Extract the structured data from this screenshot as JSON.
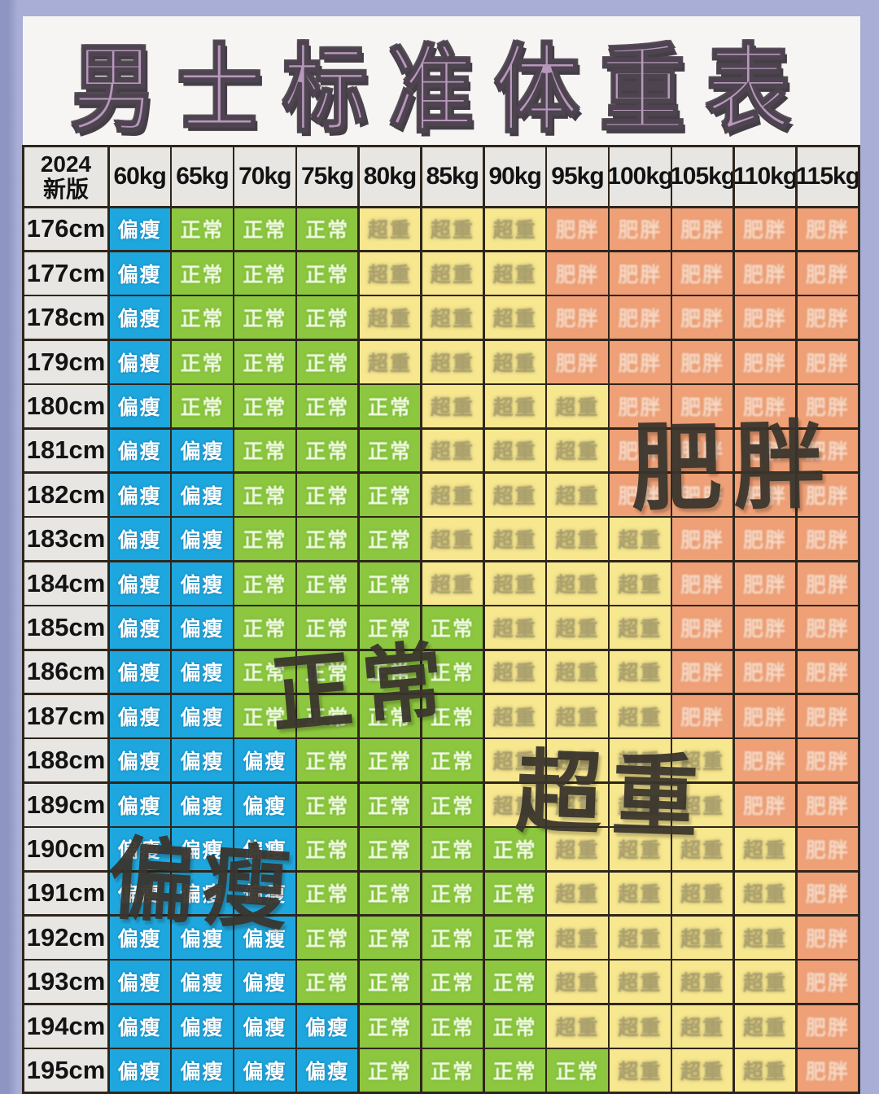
{
  "page": {
    "background_color": "#a8aed5",
    "title_band_color": "#f6f5f3",
    "title_color": "#b897bd"
  },
  "chart_data": {
    "type": "heatmap",
    "title": "男士标准体重表",
    "corner": {
      "line1": "2024",
      "line2": "新版"
    },
    "columns": [
      "60kg",
      "65kg",
      "70kg",
      "75kg",
      "80kg",
      "85kg",
      "90kg",
      "95kg",
      "100kg",
      "105kg",
      "110kg",
      "115kg"
    ],
    "rows": [
      "176cm",
      "177cm",
      "178cm",
      "179cm",
      "180cm",
      "181cm",
      "182cm",
      "183cm",
      "184cm",
      "185cm",
      "186cm",
      "187cm",
      "188cm",
      "189cm",
      "190cm",
      "191cm",
      "192cm",
      "193cm",
      "194cm",
      "195cm"
    ],
    "categories": {
      "B": {
        "label": "偏瘦",
        "color": "#1ea7de",
        "text_color": "#ffffff"
      },
      "N": {
        "label": "正常",
        "color": "#8cc73f",
        "text_color": "#f2fce4"
      },
      "O": {
        "label": "超重",
        "color": "#f7e78f",
        "text_color": "#9d9468"
      },
      "F": {
        "label": "肥胖",
        "color": "#efa077",
        "text_color": "#fbeadd"
      }
    },
    "matrix": [
      [
        "B",
        "N",
        "N",
        "N",
        "O",
        "O",
        "O",
        "F",
        "F",
        "F",
        "F",
        "F"
      ],
      [
        "B",
        "N",
        "N",
        "N",
        "O",
        "O",
        "O",
        "F",
        "F",
        "F",
        "F",
        "F"
      ],
      [
        "B",
        "N",
        "N",
        "N",
        "O",
        "O",
        "O",
        "F",
        "F",
        "F",
        "F",
        "F"
      ],
      [
        "B",
        "N",
        "N",
        "N",
        "O",
        "O",
        "O",
        "F",
        "F",
        "F",
        "F",
        "F"
      ],
      [
        "B",
        "N",
        "N",
        "N",
        "N",
        "O",
        "O",
        "O",
        "F",
        "F",
        "F",
        "F"
      ],
      [
        "B",
        "B",
        "N",
        "N",
        "N",
        "O",
        "O",
        "O",
        "F",
        "F",
        "F",
        "F"
      ],
      [
        "B",
        "B",
        "N",
        "N",
        "N",
        "O",
        "O",
        "O",
        "F",
        "F",
        "F",
        "F"
      ],
      [
        "B",
        "B",
        "N",
        "N",
        "N",
        "O",
        "O",
        "O",
        "O",
        "F",
        "F",
        "F"
      ],
      [
        "B",
        "B",
        "N",
        "N",
        "N",
        "O",
        "O",
        "O",
        "O",
        "F",
        "F",
        "F"
      ],
      [
        "B",
        "B",
        "N",
        "N",
        "N",
        "N",
        "O",
        "O",
        "O",
        "F",
        "F",
        "F"
      ],
      [
        "B",
        "B",
        "N",
        "N",
        "N",
        "N",
        "O",
        "O",
        "O",
        "F",
        "F",
        "F"
      ],
      [
        "B",
        "B",
        "N",
        "N",
        "N",
        "N",
        "O",
        "O",
        "O",
        "F",
        "F",
        "F"
      ],
      [
        "B",
        "B",
        "B",
        "N",
        "N",
        "N",
        "O",
        "O",
        "O",
        "O",
        "F",
        "F"
      ],
      [
        "B",
        "B",
        "B",
        "N",
        "N",
        "N",
        "O",
        "O",
        "O",
        "O",
        "F",
        "F"
      ],
      [
        "B",
        "B",
        "B",
        "N",
        "N",
        "N",
        "N",
        "O",
        "O",
        "O",
        "O",
        "F"
      ],
      [
        "B",
        "B",
        "B",
        "N",
        "N",
        "N",
        "N",
        "O",
        "O",
        "O",
        "O",
        "F"
      ],
      [
        "B",
        "B",
        "B",
        "N",
        "N",
        "N",
        "N",
        "O",
        "O",
        "O",
        "O",
        "F"
      ],
      [
        "B",
        "B",
        "B",
        "N",
        "N",
        "N",
        "N",
        "O",
        "O",
        "O",
        "O",
        "F"
      ],
      [
        "B",
        "B",
        "B",
        "B",
        "N",
        "N",
        "N",
        "O",
        "O",
        "O",
        "O",
        "F"
      ],
      [
        "B",
        "B",
        "B",
        "B",
        "N",
        "N",
        "N",
        "N",
        "O",
        "O",
        "O",
        "F"
      ]
    ],
    "overlays": [
      {
        "label": "肥胖"
      },
      {
        "label": "正常"
      },
      {
        "label": "超重"
      },
      {
        "label": "偏瘦"
      }
    ]
  }
}
